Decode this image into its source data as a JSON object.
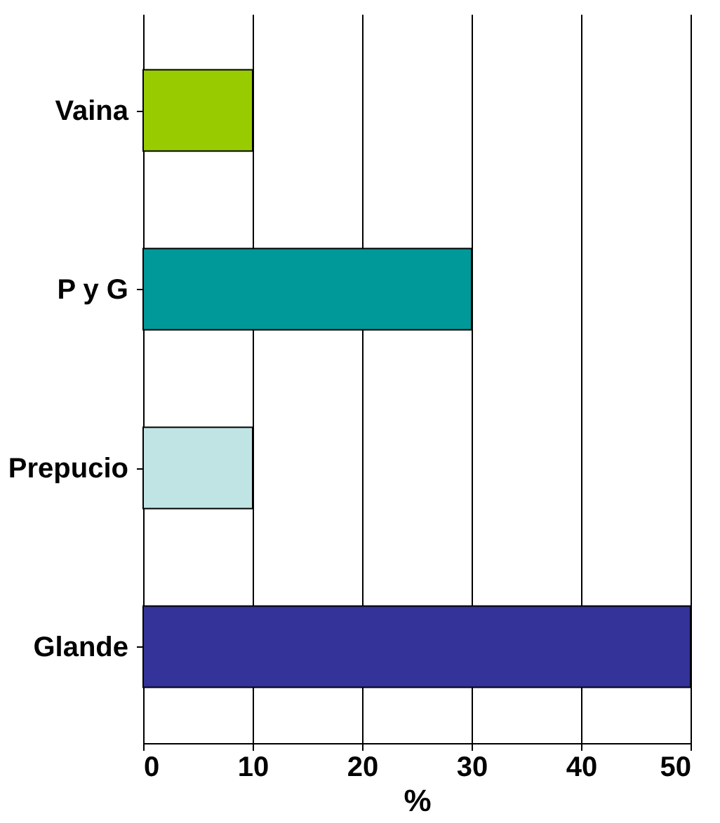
{
  "chart_data": {
    "type": "bar",
    "orientation": "horizontal",
    "categories": [
      "Vaina",
      "P y G",
      "Prepucio",
      "Glande"
    ],
    "values": [
      10,
      30,
      10,
      50
    ],
    "colors": [
      "#99cc00",
      "#009999",
      "#c0e4e4",
      "#333399"
    ],
    "xlabel": "%",
    "xlim": [
      0,
      50
    ],
    "xticks": [
      0,
      10,
      20,
      30,
      40,
      50
    ],
    "grid": "x",
    "legend": false
  }
}
